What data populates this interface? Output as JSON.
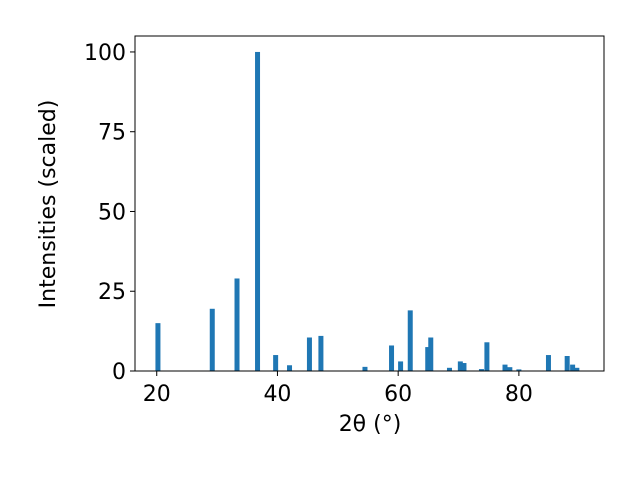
{
  "chart_data": {
    "type": "bar",
    "xlabel": "2θ (°)",
    "ylabel": "Intensities (scaled)",
    "x": [
      20.2,
      29.2,
      33.3,
      36.7,
      39.7,
      42.0,
      45.3,
      47.2,
      54.5,
      58.9,
      60.4,
      62.0,
      64.9,
      65.4,
      68.5,
      70.3,
      70.9,
      73.8,
      74.7,
      77.7,
      78.5,
      80.0,
      84.9,
      88.0,
      88.9,
      89.6
    ],
    "values": [
      15,
      19.5,
      29,
      100,
      5,
      1.8,
      10.5,
      11,
      1.3,
      8,
      3,
      19,
      7.5,
      10.5,
      1,
      3,
      2.5,
      0.6,
      9,
      2,
      1.2,
      0.5,
      5,
      4.7,
      2,
      1
    ],
    "color": "#1f77b4",
    "xlim": [
      16.4,
      94.1
    ],
    "ylim": [
      0,
      105
    ],
    "xticks": [
      20,
      40,
      60,
      80
    ],
    "yticks": [
      0,
      25,
      50,
      75,
      100
    ]
  }
}
